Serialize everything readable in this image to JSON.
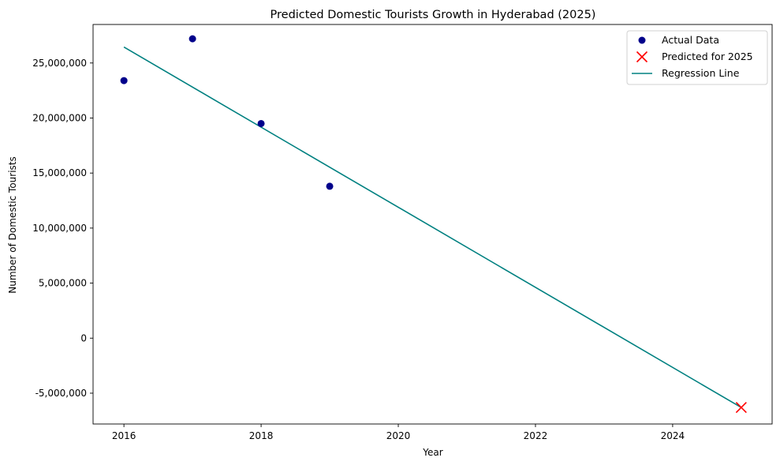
{
  "chart_data": {
    "type": "scatter",
    "title": "Predicted Domestic Tourists Growth in Hyderabad (2025)",
    "xlabel": "Year",
    "ylabel": "Number of Domestic Tourists",
    "xlim": [
      2015.55,
      2025.45
    ],
    "ylim": [
      -7800000,
      28500000
    ],
    "xticks": [
      2016,
      2018,
      2020,
      2022,
      2024
    ],
    "yticks": [
      -5000000,
      0,
      5000000,
      10000000,
      15000000,
      20000000,
      25000000
    ],
    "grid": false,
    "legend_position": "upper right",
    "series": [
      {
        "name": "Actual Data",
        "kind": "scatter",
        "marker": "circle",
        "color": "#00008b",
        "points": [
          {
            "x": 2016,
            "y": 23400000
          },
          {
            "x": 2017,
            "y": 27200000
          },
          {
            "x": 2018,
            "y": 19500000
          },
          {
            "x": 2019,
            "y": 13800000
          }
        ]
      },
      {
        "name": "Predicted for 2025",
        "kind": "scatter",
        "marker": "x",
        "color": "#ff0000",
        "points": [
          {
            "x": 2025,
            "y": -6300000
          }
        ]
      },
      {
        "name": "Regression Line",
        "kind": "line",
        "color": "#008080",
        "points": [
          {
            "x": 2016,
            "y": 26450000
          },
          {
            "x": 2025,
            "y": -6300000
          }
        ]
      }
    ]
  }
}
